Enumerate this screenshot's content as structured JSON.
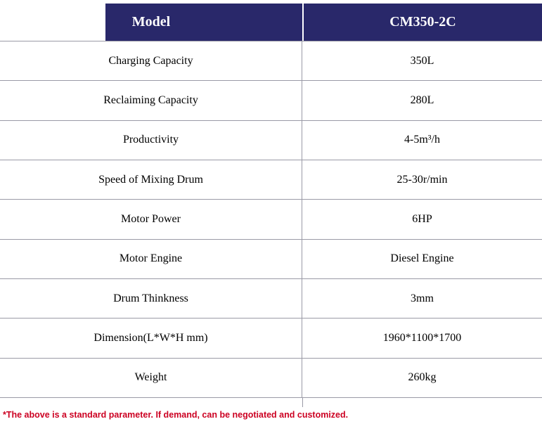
{
  "table": {
    "header": {
      "col1": "Model",
      "col2": "CM350-2C"
    },
    "rows": [
      {
        "label": "Charging Capacity",
        "value": "350L"
      },
      {
        "label": "Reclaiming Capacity",
        "value": "280L"
      },
      {
        "label": "Productivity",
        "value": "4-5m³/h"
      },
      {
        "label": "Speed of Mixing Drum",
        "value": "25-30r/min"
      },
      {
        "label": "Motor Power",
        "value": "6HP"
      },
      {
        "label": "Motor Engine",
        "value": "Diesel Engine"
      },
      {
        "label": "Drum Thinkness",
        "value": "3mm"
      },
      {
        "label": "Dimension(L*W*H mm)",
        "value": "1960*1100*1700"
      },
      {
        "label": "Weight",
        "value": "260kg"
      }
    ]
  },
  "footnote": "*The above is a standard parameter. If demand, can be negotiated and customized.",
  "colors": {
    "header_bg": "#29286a",
    "header_text": "#ffffff",
    "border": "#9a9aa6",
    "note_red": "#cc0022",
    "body_text": "#000000"
  }
}
